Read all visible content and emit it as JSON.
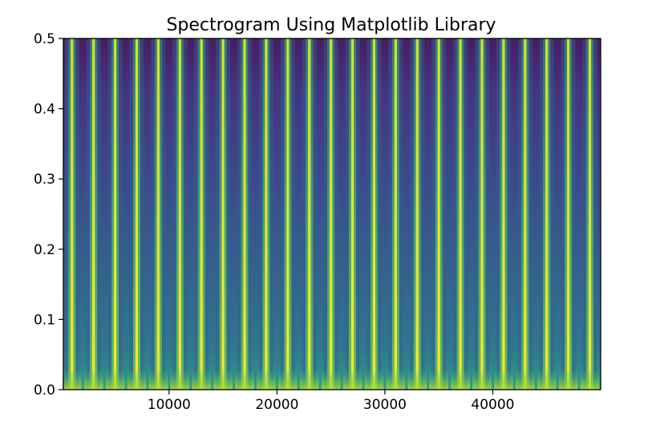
{
  "chart_data": {
    "type": "heatmap",
    "title": "Spectrogram Using Matplotlib Library",
    "xlabel": "",
    "ylabel": "",
    "xlim": [
      200,
      50000
    ],
    "ylim": [
      0.0,
      0.5
    ],
    "x_ticks": [
      10000,
      20000,
      30000,
      40000
    ],
    "x_tick_labels": [
      "10000",
      "20000",
      "30000",
      "40000"
    ],
    "y_ticks": [
      0.0,
      0.1,
      0.2,
      0.3,
      0.4,
      0.5
    ],
    "y_tick_labels": [
      "0.0",
      "0.1",
      "0.2",
      "0.3",
      "0.4",
      "0.5"
    ],
    "colormap": "viridis",
    "colors": {
      "low": "#440154",
      "mid": "#31688e",
      "high": "#fde725"
    },
    "bright_lines_x": [
      1000,
      3000,
      5000,
      7000,
      9000,
      11000,
      13000,
      15000,
      17000,
      19000,
      21000,
      23000,
      25000,
      27000,
      29000,
      31000,
      33000,
      35000,
      37000,
      39000,
      41000,
      43000,
      45000,
      47000,
      49000
    ],
    "grid": false
  }
}
